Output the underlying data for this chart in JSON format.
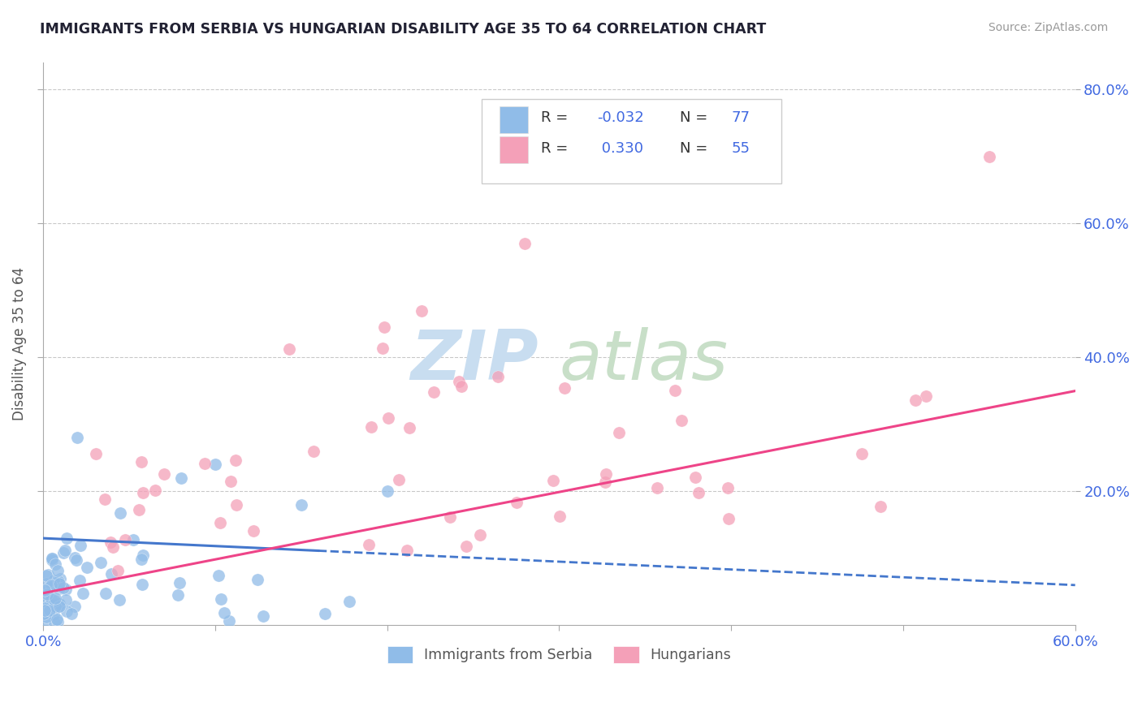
{
  "title": "IMMIGRANTS FROM SERBIA VS HUNGARIAN DISABILITY AGE 35 TO 64 CORRELATION CHART",
  "source": "Source: ZipAtlas.com",
  "ylabel": "Disability Age 35 to 64",
  "xmin": 0.0,
  "xmax": 0.6,
  "ymin": 0.0,
  "ymax": 0.84,
  "background_color": "#ffffff",
  "serbia_color": "#90BCE8",
  "hungary_color": "#F4A0B8",
  "serbia_line_color": "#4477CC",
  "hungary_line_color": "#EE4488",
  "serbia_R": -0.032,
  "serbia_N": 77,
  "hungary_R": 0.33,
  "hungary_N": 55,
  "tick_label_color": "#4169E1",
  "title_color": "#222233",
  "watermark_zip_color": "#C8DDF0",
  "watermark_atlas_color": "#C8DFC8"
}
